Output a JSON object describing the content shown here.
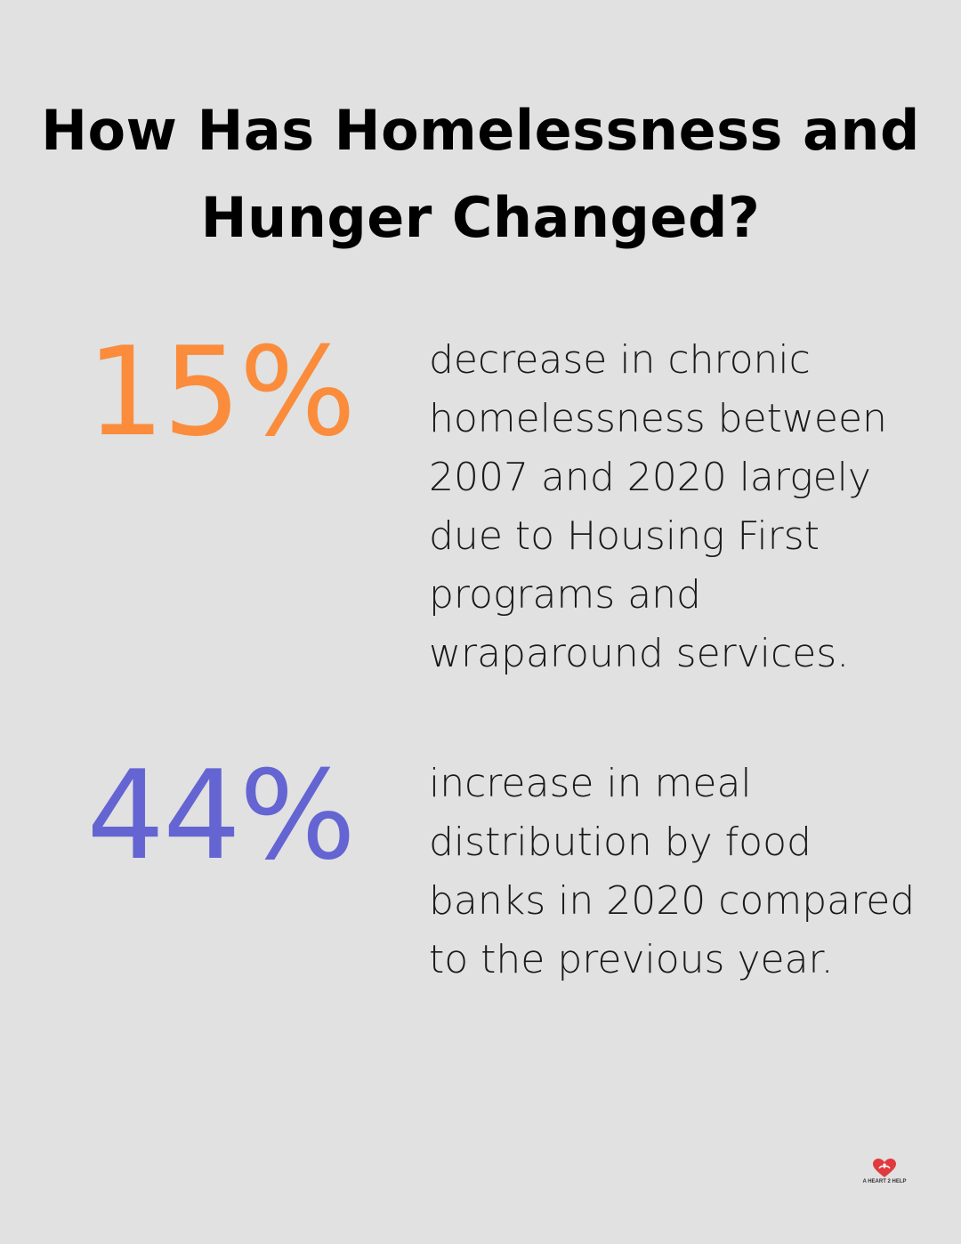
{
  "title": "How Has Homelessness and Hunger Changed?",
  "colors": {
    "background": "#e0e1e0",
    "stat_1": "#fa8c3c",
    "stat_2": "#6464d2",
    "logo_heart": "#e03a3e"
  },
  "stats": [
    {
      "value": "15%",
      "description": "decrease in chronic homelessness between 2007 and 2020 largely due to Housing First programs and wraparound services."
    },
    {
      "value": "44%",
      "description": "increase in meal distribution by food banks in 2020 compared to the previous year."
    }
  ],
  "logo": {
    "icon": "heart-hands-icon",
    "text": "A HEART 2 HELP"
  }
}
